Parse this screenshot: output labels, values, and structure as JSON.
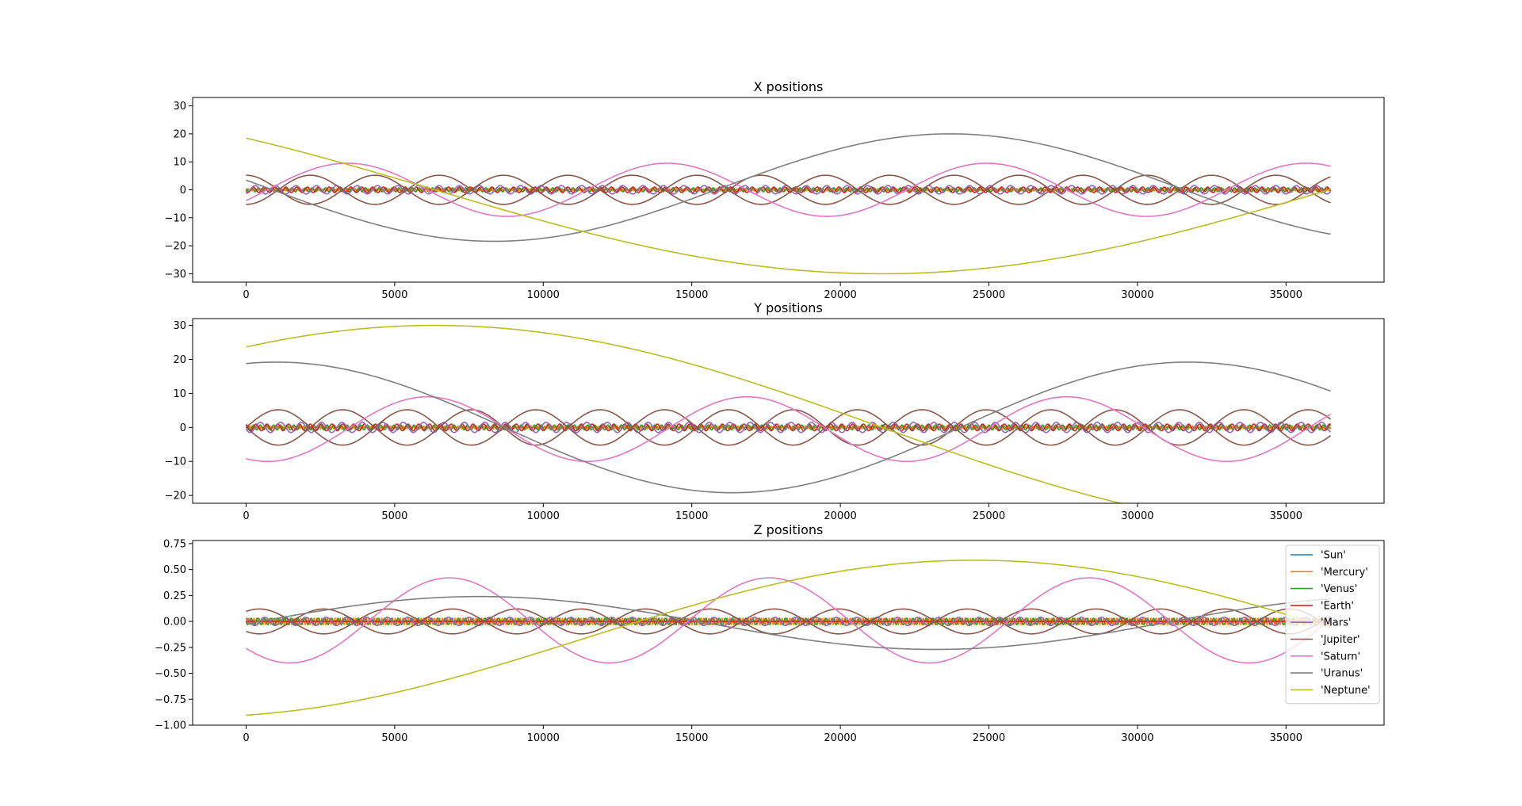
{
  "chart_data": [
    {
      "type": "line",
      "title": "X positions",
      "xlabel": "",
      "ylabel": "",
      "xlim": [
        -1800,
        38300
      ],
      "ylim": [
        -33,
        33
      ],
      "xticks": [
        0,
        5000,
        10000,
        15000,
        20000,
        25000,
        30000,
        35000
      ],
      "yticks": [
        -30,
        -20,
        -10,
        0,
        10,
        20,
        30
      ],
      "ytick_labels": [
        "−30",
        "−20",
        "−10",
        "0",
        "10",
        "20",
        "30"
      ],
      "x_range": [
        0,
        36500
      ],
      "series": [
        {
          "name": "'Sun'",
          "color": "#1f77b4",
          "amplitude": 0.01,
          "period": 4333,
          "phase_deg": 0,
          "offset": 0
        },
        {
          "name": "'Mercury'",
          "color": "#ff7f0e",
          "amplitude": 0.39,
          "period": 88,
          "phase_deg": 90,
          "offset": 0
        },
        {
          "name": "'Venus'",
          "color": "#2ca02c",
          "amplitude": 0.72,
          "period": 225,
          "phase_deg": 45,
          "offset": 0
        },
        {
          "name": "'Earth'",
          "color": "#d62728",
          "amplitude": 1.0,
          "period": 365,
          "phase_deg": 120,
          "offset": 0
        },
        {
          "name": "'Mars'",
          "color": "#9467bd",
          "amplitude": 1.5,
          "period": 687,
          "phase_deg": 200,
          "offset": 0
        },
        {
          "name": "'Jupiter'",
          "color": "#8c564b",
          "amplitude": 5.2,
          "period": 4333,
          "phase_deg": 0,
          "offset": 0,
          "mirror": true
        },
        {
          "name": "'Saturn'",
          "color": "#e377c2",
          "amplitude": 9.5,
          "period": 10759,
          "phase_deg": 246,
          "offset": 0
        },
        {
          "name": "'Uranus'",
          "color": "#7f7f7f",
          "amplitude": 19.2,
          "period": 30687,
          "phase_deg": 82,
          "offset": 0.8
        },
        {
          "name": "'Neptune'",
          "color": "#bcbd22",
          "amplitude": 30.0,
          "period": 60190,
          "phase_deg": 52,
          "offset": 0
        }
      ]
    },
    {
      "type": "line",
      "title": "Y positions",
      "xlabel": "",
      "ylabel": "",
      "xlim": [
        -1800,
        38300
      ],
      "ylim": [
        -22.3,
        32
      ],
      "xticks": [
        0,
        5000,
        10000,
        15000,
        20000,
        25000,
        30000,
        35000
      ],
      "yticks": [
        -20,
        -10,
        0,
        10,
        20,
        30
      ],
      "ytick_labels": [
        "−20",
        "−10",
        "0",
        "10",
        "20",
        "30"
      ],
      "x_range": [
        0,
        36500
      ],
      "series": [
        {
          "name": "'Sun'",
          "color": "#1f77b4",
          "amplitude": 0.01,
          "period": 4333,
          "phase_deg": 0,
          "offset": 0
        },
        {
          "name": "'Mercury'",
          "color": "#ff7f0e",
          "amplitude": 0.39,
          "period": 88,
          "phase_deg": 0,
          "offset": 0
        },
        {
          "name": "'Venus'",
          "color": "#2ca02c",
          "amplitude": 0.72,
          "period": 225,
          "phase_deg": 315,
          "offset": 0
        },
        {
          "name": "'Earth'",
          "color": "#d62728",
          "amplitude": 1.0,
          "period": 365,
          "phase_deg": 30,
          "offset": 0
        },
        {
          "name": "'Mars'",
          "color": "#9467bd",
          "amplitude": 1.5,
          "period": 687,
          "phase_deg": 110,
          "offset": 0
        },
        {
          "name": "'Jupiter'",
          "color": "#8c564b",
          "amplitude": 5.2,
          "period": 4333,
          "phase_deg": 270,
          "offset": 0,
          "mirror": true
        },
        {
          "name": "'Saturn'",
          "color": "#e377c2",
          "amplitude": 9.5,
          "period": 10759,
          "phase_deg": 156,
          "offset": -0.5
        },
        {
          "name": "'Uranus'",
          "color": "#7f7f7f",
          "amplitude": 19.2,
          "period": 30687,
          "phase_deg": 348,
          "offset": 0
        },
        {
          "name": "'Neptune'",
          "color": "#bcbd22",
          "amplitude": 30.0,
          "period": 60190,
          "phase_deg": 322,
          "offset": 0
        }
      ]
    },
    {
      "type": "line",
      "title": "Z positions",
      "xlabel": "",
      "ylabel": "",
      "xlim": [
        -1800,
        38300
      ],
      "ylim": [
        -1.0,
        0.78
      ],
      "xticks": [
        0,
        5000,
        10000,
        15000,
        20000,
        25000,
        30000,
        35000
      ],
      "yticks": [
        -1.0,
        -0.75,
        -0.5,
        -0.25,
        0.0,
        0.25,
        0.5,
        0.75
      ],
      "ytick_labels": [
        "−1.00",
        "−0.75",
        "−0.50",
        "−0.25",
        "0.00",
        "0.25",
        "0.50",
        "0.75"
      ],
      "x_range": [
        0,
        36500
      ],
      "series": [
        {
          "name": "'Sun'",
          "color": "#1f77b4",
          "amplitude": 0.0,
          "period": 4333,
          "phase_deg": 0,
          "offset": 0
        },
        {
          "name": "'Mercury'",
          "color": "#ff7f0e",
          "amplitude": 0.03,
          "period": 88,
          "phase_deg": 0,
          "offset": 0
        },
        {
          "name": "'Venus'",
          "color": "#2ca02c",
          "amplitude": 0.03,
          "period": 225,
          "phase_deg": 90,
          "offset": 0
        },
        {
          "name": "'Earth'",
          "color": "#d62728",
          "amplitude": 0.0,
          "period": 365,
          "phase_deg": 0,
          "offset": 0
        },
        {
          "name": "'Mars'",
          "color": "#9467bd",
          "amplitude": 0.04,
          "period": 687,
          "phase_deg": 30,
          "offset": 0
        },
        {
          "name": "'Jupiter'",
          "color": "#8c564b",
          "amplitude": 0.12,
          "period": 4333,
          "phase_deg": 323,
          "offset": 0,
          "mirror": true
        },
        {
          "name": "'Saturn'",
          "color": "#e377c2",
          "amplitude": 0.41,
          "period": 10759,
          "phase_deg": 131,
          "offset": 0.01
        },
        {
          "name": "'Uranus'",
          "color": "#7f7f7f",
          "amplitude": 0.255,
          "period": 30687,
          "phase_deg": 268,
          "offset": -0.015
        },
        {
          "name": "'Neptune'",
          "color": "#bcbd22",
          "amplitude": 0.755,
          "period": 52500,
          "phase_deg": 192,
          "offset": -0.165
        }
      ]
    }
  ],
  "legend": {
    "placement": "right",
    "entries": [
      "'Sun'",
      "'Mercury'",
      "'Venus'",
      "'Earth'",
      "'Mars'",
      "'Jupiter'",
      "'Saturn'",
      "'Uranus'",
      "'Neptune'"
    ],
    "colors": [
      "#1f77b4",
      "#ff7f0e",
      "#2ca02c",
      "#d62728",
      "#9467bd",
      "#8c564b",
      "#e377c2",
      "#7f7f7f",
      "#bcbd22"
    ]
  }
}
